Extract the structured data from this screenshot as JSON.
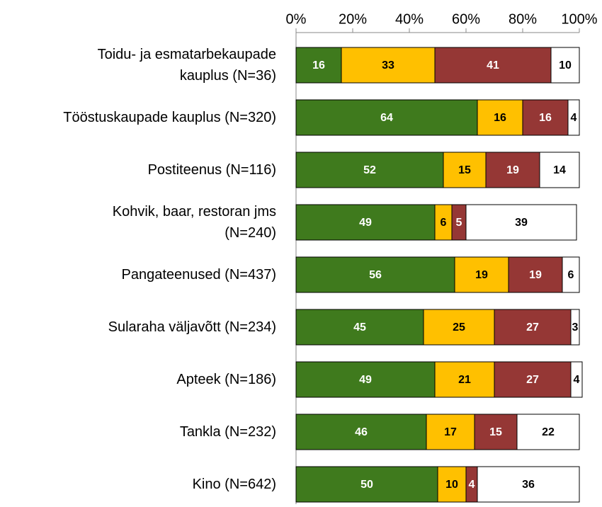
{
  "chart_data": {
    "type": "stacked_bar_horizontal",
    "categories": [
      "Toidu- ja esmatarbekaupade\nkauplus (N=36)",
      "Tööstuskaupade kauplus (N=320)",
      "Postiteenus (N=116)",
      "Kohvik, baar, restoran jms\n(N=240)",
      "Pangateenused (N=437)",
      "Sularaha väljavõtt (N=234)",
      "Apteek (N=186)",
      "Tankla (N=232)",
      "Kino (N=642)"
    ],
    "series": [
      {
        "color": "#3f7a1d",
        "label_color": "#ffffff",
        "values": [
          16,
          64,
          52,
          49,
          56,
          45,
          49,
          46,
          50
        ]
      },
      {
        "color": "#ffc000",
        "label_color": "#000000",
        "values": [
          33,
          16,
          15,
          6,
          19,
          25,
          21,
          17,
          10
        ]
      },
      {
        "color": "#953735",
        "label_color": "#ffffff",
        "values": [
          41,
          16,
          19,
          5,
          19,
          27,
          27,
          15,
          4
        ]
      },
      {
        "color": "#ffffff",
        "label_color": "#000000",
        "values": [
          10,
          4,
          14,
          39,
          6,
          3,
          4,
          22,
          36
        ]
      }
    ],
    "xlim": [
      0,
      100
    ],
    "xticks": [
      {
        "value": 0,
        "label": "0%"
      },
      {
        "value": 20,
        "label": "20%"
      },
      {
        "value": 40,
        "label": "40%"
      },
      {
        "value": 60,
        "label": "60%"
      },
      {
        "value": 80,
        "label": "80%"
      },
      {
        "value": 100,
        "label": "100%"
      }
    ]
  }
}
